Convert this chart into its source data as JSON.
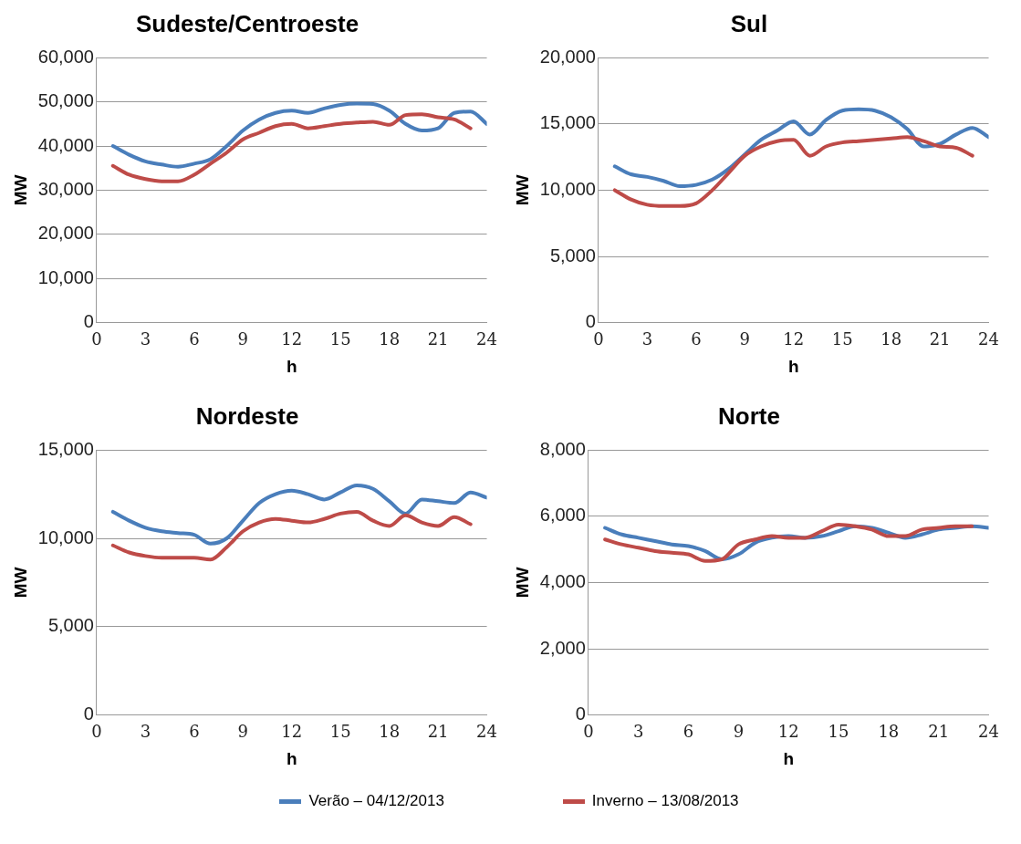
{
  "chart_data": [
    {
      "type": "line",
      "title": "Sudeste/Centroeste",
      "xlabel": "h",
      "ylabel": "MW",
      "xlim": [
        0,
        24
      ],
      "xticks": [
        0,
        3,
        6,
        9,
        12,
        15,
        18,
        21,
        24
      ],
      "ylim": [
        0,
        60000
      ],
      "yticks": [
        {
          "value": 0,
          "label": "0"
        },
        {
          "value": 10000,
          "label": "10,000"
        },
        {
          "value": 20000,
          "label": "20,000"
        },
        {
          "value": 30000,
          "label": "30,000"
        },
        {
          "value": 40000,
          "label": "40,000"
        },
        {
          "value": 50000,
          "label": "50,000"
        },
        {
          "value": 60000,
          "label": "60,000"
        }
      ],
      "grid": "y",
      "marker": "none",
      "series": [
        {
          "color": "#4a7ebb",
          "x": [
            1,
            2,
            3,
            4,
            5,
            6,
            7,
            8,
            9,
            10,
            11,
            12,
            13,
            14,
            15,
            16,
            17,
            18,
            19,
            20,
            21,
            22,
            23,
            24
          ],
          "values": [
            40000,
            38000,
            36500,
            35800,
            35300,
            36000,
            37000,
            40000,
            43500,
            46000,
            47500,
            48000,
            47500,
            48500,
            49300,
            49600,
            49500,
            48000,
            45000,
            43500,
            44000,
            47500,
            47800,
            45000
          ]
        },
        {
          "color": "#be4b48",
          "x": [
            1,
            2,
            3,
            4,
            5,
            6,
            7,
            8,
            9,
            10,
            11,
            12,
            13,
            14,
            15,
            16,
            17,
            18,
            19,
            20,
            21,
            22,
            23
          ],
          "values": [
            35500,
            33500,
            32500,
            32000,
            32000,
            33500,
            36000,
            38500,
            41500,
            43000,
            44500,
            45000,
            44000,
            44500,
            45000,
            45300,
            45500,
            44800,
            47000,
            47200,
            46500,
            46000,
            44000
          ]
        }
      ]
    },
    {
      "type": "line",
      "title": "Sul",
      "xlabel": "h",
      "ylabel": "MW",
      "xlim": [
        0,
        24
      ],
      "xticks": [
        0,
        3,
        6,
        9,
        12,
        15,
        18,
        21,
        24
      ],
      "ylim": [
        0,
        20000
      ],
      "yticks": [
        {
          "value": 0,
          "label": "0"
        },
        {
          "value": 5000,
          "label": "5,000"
        },
        {
          "value": 10000,
          "label": "10,000"
        },
        {
          "value": 15000,
          "label": "15,000"
        },
        {
          "value": 20000,
          "label": "20,000"
        }
      ],
      "grid": "y",
      "marker": "none",
      "series": [
        {
          "color": "#4a7ebb",
          "x": [
            1,
            2,
            3,
            4,
            5,
            6,
            7,
            8,
            9,
            10,
            11,
            12,
            13,
            14,
            15,
            16,
            17,
            18,
            19,
            20,
            21,
            22,
            23,
            24
          ],
          "values": [
            11800,
            11200,
            11000,
            10700,
            10300,
            10400,
            10800,
            11600,
            12700,
            13800,
            14500,
            15200,
            14200,
            15300,
            16000,
            16100,
            16000,
            15500,
            14600,
            13300,
            13500,
            14200,
            14700,
            14000
          ]
        },
        {
          "color": "#be4b48",
          "x": [
            1,
            2,
            3,
            4,
            5,
            6,
            7,
            8,
            9,
            10,
            11,
            12,
            13,
            14,
            15,
            16,
            17,
            18,
            19,
            20,
            21,
            22,
            23
          ],
          "values": [
            10000,
            9300,
            8900,
            8800,
            8800,
            9000,
            10000,
            11300,
            12600,
            13300,
            13700,
            13800,
            12600,
            13300,
            13600,
            13700,
            13800,
            13900,
            14000,
            13700,
            13300,
            13200,
            12600
          ]
        }
      ]
    },
    {
      "type": "line",
      "title": "Nordeste",
      "xlabel": "h",
      "ylabel": "MW",
      "xlim": [
        0,
        24
      ],
      "xticks": [
        0,
        3,
        6,
        9,
        12,
        15,
        18,
        21,
        24
      ],
      "ylim": [
        0,
        15000
      ],
      "yticks": [
        {
          "value": 0,
          "label": "0"
        },
        {
          "value": 5000,
          "label": "5,000"
        },
        {
          "value": 10000,
          "label": "10,000"
        },
        {
          "value": 15000,
          "label": "15,000"
        }
      ],
      "grid": "y",
      "marker": "none",
      "series": [
        {
          "color": "#4a7ebb",
          "x": [
            1,
            2,
            3,
            4,
            5,
            6,
            7,
            8,
            9,
            10,
            11,
            12,
            13,
            14,
            15,
            16,
            17,
            18,
            19,
            20,
            21,
            22,
            23,
            24
          ],
          "values": [
            11500,
            11000,
            10600,
            10400,
            10300,
            10200,
            9700,
            10000,
            11000,
            12000,
            12500,
            12700,
            12500,
            12200,
            12600,
            13000,
            12800,
            12100,
            11400,
            12200,
            12100,
            12000,
            12600,
            12300
          ]
        },
        {
          "color": "#be4b48",
          "x": [
            1,
            2,
            3,
            4,
            5,
            6,
            7,
            8,
            9,
            10,
            11,
            12,
            13,
            14,
            15,
            16,
            17,
            18,
            19,
            20,
            21,
            22,
            23
          ],
          "values": [
            9600,
            9200,
            9000,
            8900,
            8900,
            8900,
            8800,
            9500,
            10400,
            10900,
            11100,
            11000,
            10900,
            11100,
            11400,
            11500,
            11000,
            10700,
            11300,
            10900,
            10700,
            11200,
            10800
          ]
        }
      ]
    },
    {
      "type": "line",
      "title": "Norte",
      "xlabel": "h",
      "ylabel": "MW",
      "xlim": [
        0,
        24
      ],
      "xticks": [
        0,
        3,
        6,
        9,
        12,
        15,
        18,
        21,
        24
      ],
      "ylim": [
        0,
        8000
      ],
      "yticks": [
        {
          "value": 0,
          "label": "0"
        },
        {
          "value": 2000,
          "label": "2,000"
        },
        {
          "value": 4000,
          "label": "4,000"
        },
        {
          "value": 6000,
          "label": "6,000"
        },
        {
          "value": 8000,
          "label": "8,000"
        }
      ],
      "grid": "y",
      "legend": "bottom",
      "marker": "none",
      "series": [
        {
          "name": "Verão – 04/12/2013",
          "color": "#4a7ebb",
          "x": [
            1,
            2,
            3,
            4,
            5,
            6,
            7,
            8,
            9,
            10,
            11,
            12,
            13,
            14,
            15,
            16,
            17,
            18,
            19,
            20,
            21,
            22,
            23,
            24
          ],
          "values": [
            5650,
            5450,
            5350,
            5250,
            5150,
            5100,
            4950,
            4700,
            4850,
            5200,
            5350,
            5400,
            5350,
            5400,
            5550,
            5700,
            5650,
            5500,
            5350,
            5450,
            5600,
            5650,
            5700,
            5650
          ]
        },
        {
          "name": "Inverno – 13/08/2013",
          "color": "#be4b48",
          "x": [
            1,
            2,
            3,
            4,
            5,
            6,
            7,
            8,
            9,
            10,
            11,
            12,
            13,
            14,
            15,
            16,
            17,
            18,
            19,
            20,
            21,
            22,
            23
          ],
          "values": [
            5300,
            5150,
            5050,
            4950,
            4900,
            4850,
            4650,
            4700,
            5150,
            5300,
            5400,
            5350,
            5350,
            5550,
            5750,
            5700,
            5600,
            5400,
            5400,
            5600,
            5650,
            5700,
            5700
          ]
        }
      ]
    }
  ]
}
